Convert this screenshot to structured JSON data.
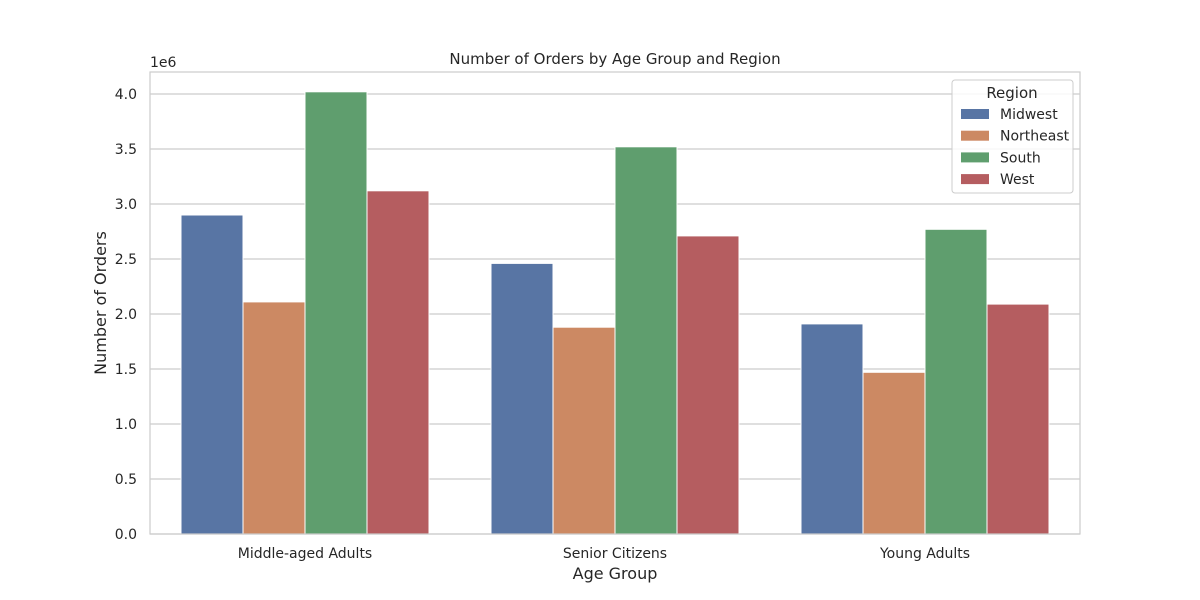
{
  "chart_data": {
    "type": "bar",
    "title": "Number of Orders by Age Group and Region",
    "xlabel": "Age Group",
    "ylabel": "Number of Orders",
    "y_scale_label": "1e6",
    "y_scale": 1000000,
    "ylim": [
      0,
      4.2
    ],
    "yticks": [
      0.0,
      0.5,
      1.0,
      1.5,
      2.0,
      2.5,
      3.0,
      3.5,
      4.0
    ],
    "ytick_labels": [
      "0.0",
      "0.5",
      "1.0",
      "1.5",
      "2.0",
      "2.5",
      "3.0",
      "3.5",
      "4.0"
    ],
    "grid": true,
    "legend_placement": "top-right",
    "legend_title": "Region",
    "categories": [
      "Middle-aged Adults",
      "Senior Citizens",
      "Young Adults"
    ],
    "series": [
      {
        "name": "Midwest",
        "color": "#5875a4",
        "values": [
          2.9,
          2.46,
          1.91
        ]
      },
      {
        "name": "Northeast",
        "color": "#cc8963",
        "values": [
          2.11,
          1.88,
          1.47
        ]
      },
      {
        "name": "South",
        "color": "#5f9e6e",
        "values": [
          4.02,
          3.52,
          2.77
        ]
      },
      {
        "name": "West",
        "color": "#b55d60",
        "values": [
          3.12,
          2.71,
          2.09
        ]
      }
    ]
  }
}
